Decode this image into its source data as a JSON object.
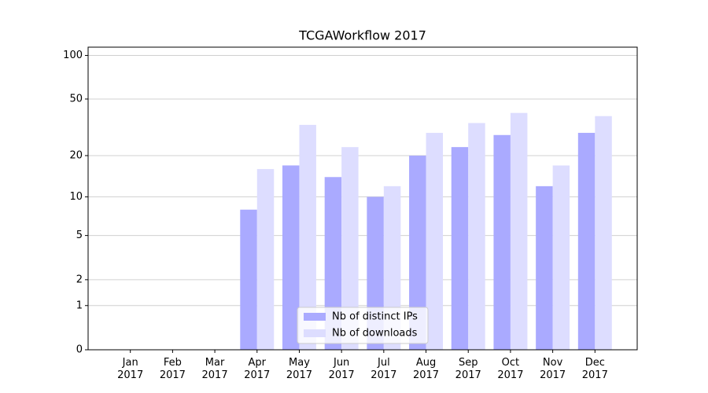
{
  "chart_data": {
    "type": "bar",
    "title": "TCGAWorkflow 2017",
    "categories": [
      "Jan 2017",
      "Feb 2017",
      "Mar 2017",
      "Apr 2017",
      "May 2017",
      "Jun 2017",
      "Jul 2017",
      "Aug 2017",
      "Sep 2017",
      "Oct 2017",
      "Nov 2017",
      "Dec 2017"
    ],
    "series": [
      {
        "name": "Nb of distinct IPs",
        "color": "#aaaaff",
        "values": [
          0,
          0,
          0,
          8,
          17,
          14,
          10,
          20,
          23,
          28,
          12,
          29
        ]
      },
      {
        "name": "Nb of downloads",
        "color": "#ddddff",
        "values": [
          0,
          0,
          0,
          16,
          33,
          23,
          12,
          29,
          34,
          40,
          17,
          38
        ]
      }
    ],
    "yscale": "symlog",
    "ylim": [
      0,
      114
    ],
    "yticks": [
      0,
      1,
      2,
      5,
      10,
      20,
      50,
      100
    ],
    "grid": true,
    "legend": "lower center"
  }
}
